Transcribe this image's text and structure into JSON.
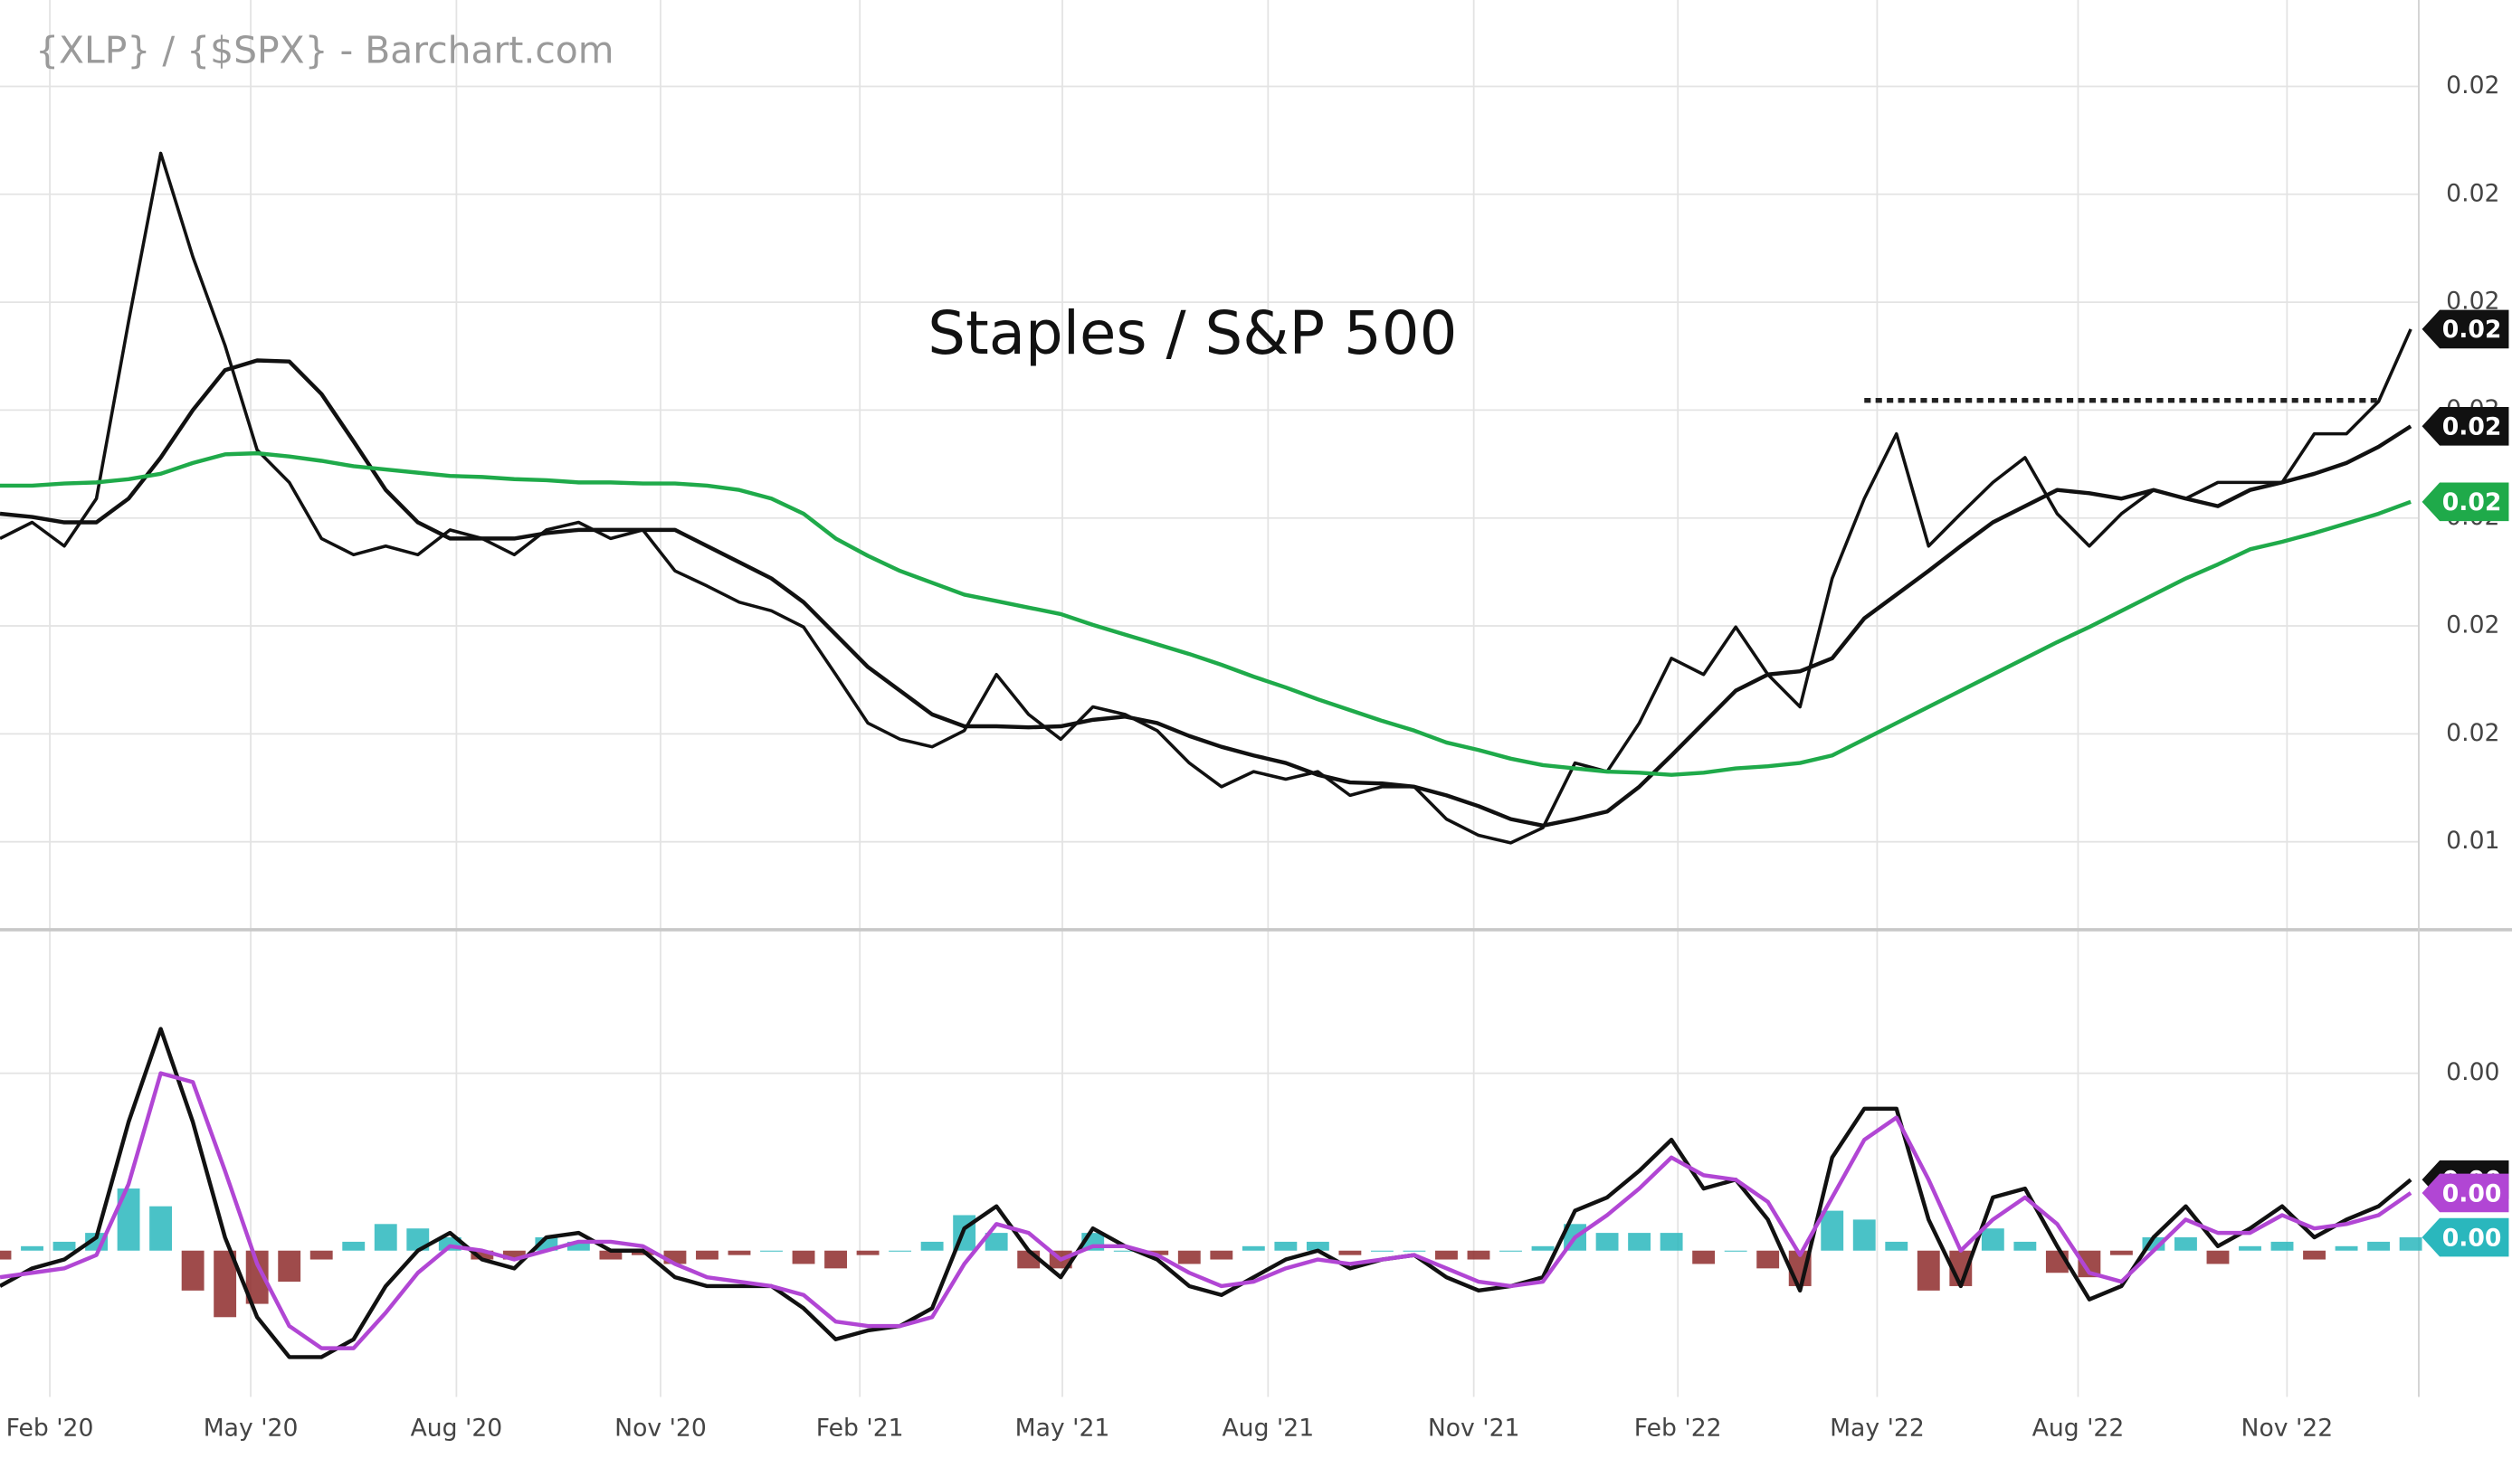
{
  "chart_data": [
    {
      "type": "line",
      "title": "{XLP} / {$SPX} - Barchart.com",
      "annotation": "Staples / S&P 500",
      "ylim": [
        0.0132,
        0.0218
      ],
      "yticks": [
        {
          "value": 0.014,
          "label": "0.01"
        },
        {
          "value": 0.015,
          "label": "0.02"
        },
        {
          "value": 0.016,
          "label": "0.02"
        },
        {
          "value": 0.017,
          "label": "0.02"
        },
        {
          "value": 0.018,
          "label": "0.02"
        },
        {
          "value": 0.019,
          "label": "0.02"
        },
        {
          "value": 0.02,
          "label": "0.02"
        },
        {
          "value": 0.021,
          "label": "0.02"
        }
      ],
      "grid": true,
      "series": [
        {
          "color": "#111111",
          "width": 2,
          "last_label": "0.02",
          "values": [
            0.01681,
            0.01696,
            0.01674,
            0.01718,
            0.01882,
            0.02038,
            0.01942,
            0.0186,
            0.01763,
            0.01733,
            0.01681,
            0.01666,
            0.01674,
            0.01666,
            0.01689,
            0.01681,
            0.01666,
            0.01689,
            0.01696,
            0.01681,
            0.01689,
            0.01651,
            0.01637,
            0.01622,
            0.01614,
            0.01599,
            0.01555,
            0.0151,
            0.01495,
            0.01488,
            0.01503,
            0.01555,
            0.01518,
            0.01495,
            0.01525,
            0.01518,
            0.01503,
            0.01473,
            0.01451,
            0.01465,
            0.01458,
            0.01465,
            0.01443,
            0.01451,
            0.01451,
            0.01421,
            0.01406,
            0.01399,
            0.01413,
            0.01473,
            0.01465,
            0.0151,
            0.0157,
            0.01555,
            0.01599,
            0.01555,
            0.01525,
            0.01644,
            0.01718,
            0.01778,
            0.01674,
            0.01704,
            0.01733,
            0.01756,
            0.01704,
            0.01674,
            0.01704,
            0.01726,
            0.01718,
            0.01733,
            0.01733,
            0.01733,
            0.01778,
            0.01778,
            0.01808,
            0.01875
          ]
        },
        {
          "color": "#111111",
          "width": 2.5,
          "last_label": "0.02",
          "values": [
            0.01704,
            0.01701,
            0.01696,
            0.01696,
            0.01718,
            0.01756,
            0.018,
            0.01837,
            0.01846,
            0.01845,
            0.01815,
            0.01771,
            0.01726,
            0.01696,
            0.01681,
            0.01681,
            0.01681,
            0.01686,
            0.01689,
            0.01689,
            0.01689,
            0.01689,
            0.01674,
            0.01659,
            0.01644,
            0.01622,
            0.01592,
            0.01562,
            0.0154,
            0.01518,
            0.01507,
            0.01507,
            0.01506,
            0.01507,
            0.01513,
            0.01516,
            0.0151,
            0.01498,
            0.01488,
            0.0148,
            0.01473,
            0.01462,
            0.01455,
            0.01454,
            0.01451,
            0.01443,
            0.01433,
            0.01421,
            0.01415,
            0.01421,
            0.01428,
            0.01451,
            0.0148,
            0.0151,
            0.0154,
            0.01555,
            0.01558,
            0.0157,
            0.01607,
            0.01629,
            0.01651,
            0.01674,
            0.01696,
            0.01711,
            0.01726,
            0.01723,
            0.01718,
            0.01726,
            0.01718,
            0.01711,
            0.01726,
            0.01733,
            0.01741,
            0.01751,
            0.01766,
            0.01785
          ]
        },
        {
          "color": "#1faa4a",
          "width": 2.5,
          "last_label": "0.02",
          "values": [
            0.0173,
            0.0173,
            0.01732,
            0.01733,
            0.01736,
            0.01741,
            0.01751,
            0.01759,
            0.0176,
            0.01757,
            0.01753,
            0.01748,
            0.01745,
            0.01742,
            0.01739,
            0.01738,
            0.01736,
            0.01735,
            0.01733,
            0.01733,
            0.01732,
            0.01732,
            0.0173,
            0.01726,
            0.01718,
            0.01704,
            0.01681,
            0.01665,
            0.01651,
            0.0164,
            0.01629,
            0.01623,
            0.01617,
            0.01611,
            0.01601,
            0.01592,
            0.01583,
            0.01574,
            0.01564,
            0.01553,
            0.01543,
            0.01532,
            0.01522,
            0.01512,
            0.01503,
            0.01492,
            0.01485,
            0.01477,
            0.01471,
            0.01468,
            0.01465,
            0.01464,
            0.01462,
            0.01464,
            0.01468,
            0.0147,
            0.01473,
            0.0148,
            0.01495,
            0.0151,
            0.01525,
            0.0154,
            0.01555,
            0.0157,
            0.01585,
            0.01599,
            0.01614,
            0.01629,
            0.01644,
            0.01657,
            0.01671,
            0.01678,
            0.01686,
            0.01695,
            0.01704,
            0.01715
          ]
        }
      ],
      "lines": [
        {
          "value": 0.01809,
          "from": 58,
          "to": 74,
          "style": "dotted",
          "color": "#222222"
        }
      ]
    },
    {
      "type": "macd",
      "ylim": [
        -0.00033,
        0.00072
      ],
      "yticks": [
        {
          "value": 0.0004,
          "label": "0.00"
        }
      ],
      "grid": true,
      "xticks": [
        {
          "value": 1.55,
          "label": "Feb '20"
        },
        {
          "value": 7.8,
          "label": "May '20"
        },
        {
          "value": 14.2,
          "label": "Aug '20"
        },
        {
          "value": 20.55,
          "label": "Nov '20"
        },
        {
          "value": 26.75,
          "label": "Feb '21"
        },
        {
          "value": 33.05,
          "label": "May '21"
        },
        {
          "value": 39.45,
          "label": "Aug '21"
        },
        {
          "value": 45.85,
          "label": "Nov '21"
        },
        {
          "value": 52.2,
          "label": "Feb '22"
        },
        {
          "value": 58.4,
          "label": "May '22"
        },
        {
          "value": 64.65,
          "label": "Aug '22"
        },
        {
          "value": 71.15,
          "label": "Nov '22"
        }
      ],
      "series": [
        {
          "kind": "bar",
          "color": "#2ab7bd",
          "negative_color": "#8e2b2b",
          "last_label": "0.00",
          "values": [
            -2e-05,
            1e-05,
            2e-05,
            4e-05,
            0.00014,
            0.0001,
            -9e-05,
            -0.00015,
            -0.00012,
            -7e-05,
            -2e-05,
            2e-05,
            6e-05,
            5e-05,
            3e-05,
            -2e-05,
            -2e-05,
            3e-05,
            2e-05,
            -2e-05,
            -1e-05,
            -3e-05,
            -2e-05,
            -1e-05,
            0.0,
            -3e-05,
            -4e-05,
            -1e-05,
            0.0,
            2e-05,
            8e-05,
            4e-05,
            -4e-05,
            -4e-05,
            4e-05,
            0.0,
            -1e-05,
            -3e-05,
            -2e-05,
            1e-05,
            2e-05,
            2e-05,
            -1e-05,
            0.0,
            0.0,
            -2e-05,
            -2e-05,
            0.0,
            1e-05,
            6e-05,
            4e-05,
            4e-05,
            4e-05,
            -3e-05,
            0.0,
            -4e-05,
            -8e-05,
            9e-05,
            7e-05,
            2e-05,
            -9e-05,
            -8e-05,
            5e-05,
            2e-05,
            -5e-05,
            -6e-05,
            -1e-05,
            3e-05,
            3e-05,
            -3e-05,
            1e-05,
            2e-05,
            -2e-05,
            1e-05,
            2e-05,
            3e-05
          ]
        },
        {
          "kind": "line",
          "color": "#111111",
          "width": 2.5,
          "last_label": "0.00",
          "values": [
            -8e-05,
            -4e-05,
            -2e-05,
            3e-05,
            0.00029,
            0.0005,
            0.00029,
            3e-05,
            -0.00015,
            -0.00024,
            -0.00024,
            -0.0002,
            -8e-05,
            0.0,
            4e-05,
            -2e-05,
            -4e-05,
            3e-05,
            4e-05,
            0.0,
            0.0,
            -6e-05,
            -8e-05,
            -8e-05,
            -8e-05,
            -0.00013,
            -0.0002,
            -0.00018,
            -0.00017,
            -0.00013,
            5e-05,
            0.0001,
            0.0,
            -6e-05,
            5e-05,
            1e-05,
            -2e-05,
            -8e-05,
            -0.0001,
            -6e-05,
            -2e-05,
            0.0,
            -4e-05,
            -2e-05,
            -1e-05,
            -6e-05,
            -9e-05,
            -8e-05,
            -6e-05,
            9e-05,
            0.00012,
            0.00018,
            0.00025,
            0.00014,
            0.00016,
            7e-05,
            -9e-05,
            0.00021,
            0.00032,
            0.00032,
            7e-05,
            -8e-05,
            0.00012,
            0.00014,
            1e-05,
            -0.00011,
            -8e-05,
            3e-05,
            0.0001,
            1e-05,
            5e-05,
            0.0001,
            3e-05,
            7e-05,
            0.0001,
            0.00016
          ]
        },
        {
          "kind": "line",
          "color": "#b146d4",
          "width": 2.5,
          "last_label": "0.00",
          "values": [
            -6e-05,
            -5e-05,
            -4e-05,
            -1e-05,
            0.00015,
            0.0004,
            0.00038,
            0.00018,
            -3e-05,
            -0.00017,
            -0.00022,
            -0.00022,
            -0.00014,
            -5e-05,
            1e-05,
            0.0,
            -2e-05,
            0.0,
            2e-05,
            2e-05,
            1e-05,
            -3e-05,
            -6e-05,
            -7e-05,
            -8e-05,
            -0.0001,
            -0.00016,
            -0.00017,
            -0.00017,
            -0.00015,
            -3e-05,
            6e-05,
            4e-05,
            -2e-05,
            1e-05,
            1e-05,
            -1e-05,
            -5e-05,
            -8e-05,
            -7e-05,
            -4e-05,
            -2e-05,
            -3e-05,
            -2e-05,
            -1e-05,
            -4e-05,
            -7e-05,
            -8e-05,
            -7e-05,
            3e-05,
            8e-05,
            0.00014,
            0.00021,
            0.00017,
            0.00016,
            0.00011,
            -1e-05,
            0.00012,
            0.00025,
            0.0003,
            0.00016,
            0.0,
            7e-05,
            0.00012,
            6e-05,
            -5e-05,
            -7e-05,
            0.0,
            7e-05,
            4e-05,
            4e-05,
            8e-05,
            5e-05,
            6e-05,
            8e-05,
            0.00013
          ]
        }
      ]
    }
  ]
}
